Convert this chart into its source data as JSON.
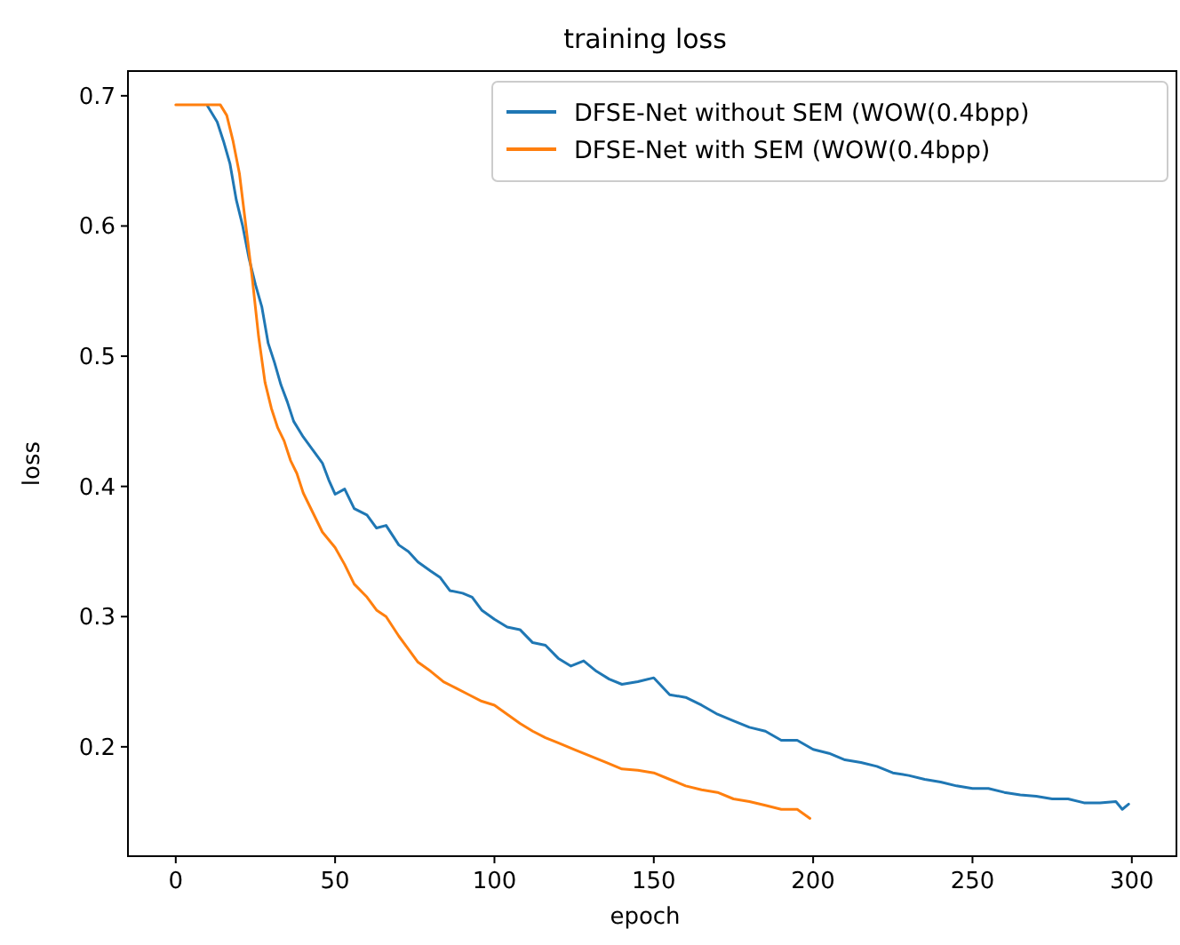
{
  "chart_data": {
    "type": "line",
    "title": "training loss",
    "xlabel": "epoch",
    "ylabel": "loss",
    "xlim": [
      -15,
      314
    ],
    "xticks": [
      0,
      50,
      100,
      150,
      200,
      250,
      300
    ],
    "ylim": [
      0.116,
      0.719
    ],
    "yticks": [
      0.2,
      0.3,
      0.4,
      0.5,
      0.6,
      0.7
    ],
    "legend": "top right",
    "grid": false,
    "series": [
      {
        "name": "DFSE-Net without SEM (WOW(0.4bpp)",
        "color": "#1f77b4",
        "x": [
          10,
          13,
          15,
          17,
          19,
          21,
          23,
          25,
          27,
          29,
          31,
          33,
          35,
          37,
          40,
          43,
          46,
          48,
          50,
          53,
          56,
          60,
          63,
          66,
          70,
          73,
          76,
          80,
          83,
          86,
          90,
          93,
          96,
          100,
          104,
          108,
          112,
          116,
          120,
          124,
          128,
          132,
          136,
          140,
          145,
          150,
          155,
          160,
          165,
          170,
          175,
          180,
          185,
          190,
          195,
          200,
          205,
          210,
          215,
          220,
          225,
          230,
          235,
          240,
          245,
          250,
          255,
          260,
          265,
          270,
          275,
          280,
          285,
          290,
          295,
          297,
          299
        ],
        "values": [
          0.692,
          0.68,
          0.665,
          0.648,
          0.62,
          0.6,
          0.575,
          0.555,
          0.538,
          0.51,
          0.495,
          0.478,
          0.465,
          0.45,
          0.438,
          0.428,
          0.418,
          0.405,
          0.394,
          0.398,
          0.383,
          0.378,
          0.368,
          0.37,
          0.355,
          0.35,
          0.342,
          0.335,
          0.33,
          0.32,
          0.318,
          0.315,
          0.305,
          0.298,
          0.292,
          0.29,
          0.28,
          0.278,
          0.268,
          0.262,
          0.266,
          0.258,
          0.252,
          0.248,
          0.25,
          0.253,
          0.24,
          0.238,
          0.232,
          0.225,
          0.22,
          0.215,
          0.212,
          0.205,
          0.205,
          0.198,
          0.195,
          0.19,
          0.188,
          0.185,
          0.18,
          0.178,
          0.175,
          0.173,
          0.17,
          0.168,
          0.168,
          0.165,
          0.163,
          0.162,
          0.16,
          0.16,
          0.157,
          0.157,
          0.158,
          0.152,
          0.156
        ]
      },
      {
        "name": "DFSE-Net with SEM (WOW(0.4bpp)",
        "color": "#ff7f0e",
        "x": [
          0,
          5,
          10,
          14,
          16,
          18,
          20,
          22,
          24,
          26,
          28,
          30,
          32,
          34,
          36,
          38,
          40,
          43,
          46,
          50,
          53,
          56,
          60,
          63,
          66,
          70,
          73,
          76,
          80,
          84,
          88,
          92,
          96,
          100,
          104,
          108,
          112,
          116,
          120,
          125,
          130,
          135,
          140,
          145,
          150,
          155,
          160,
          165,
          170,
          175,
          180,
          185,
          190,
          195,
          199
        ],
        "values": [
          0.693,
          0.693,
          0.693,
          0.693,
          0.685,
          0.665,
          0.64,
          0.6,
          0.56,
          0.515,
          0.48,
          0.46,
          0.445,
          0.435,
          0.42,
          0.41,
          0.395,
          0.38,
          0.365,
          0.353,
          0.34,
          0.325,
          0.315,
          0.305,
          0.3,
          0.285,
          0.275,
          0.265,
          0.258,
          0.25,
          0.245,
          0.24,
          0.235,
          0.232,
          0.225,
          0.218,
          0.212,
          0.207,
          0.203,
          0.198,
          0.193,
          0.188,
          0.183,
          0.182,
          0.18,
          0.175,
          0.17,
          0.167,
          0.165,
          0.16,
          0.158,
          0.155,
          0.152,
          0.152,
          0.145
        ]
      }
    ]
  }
}
